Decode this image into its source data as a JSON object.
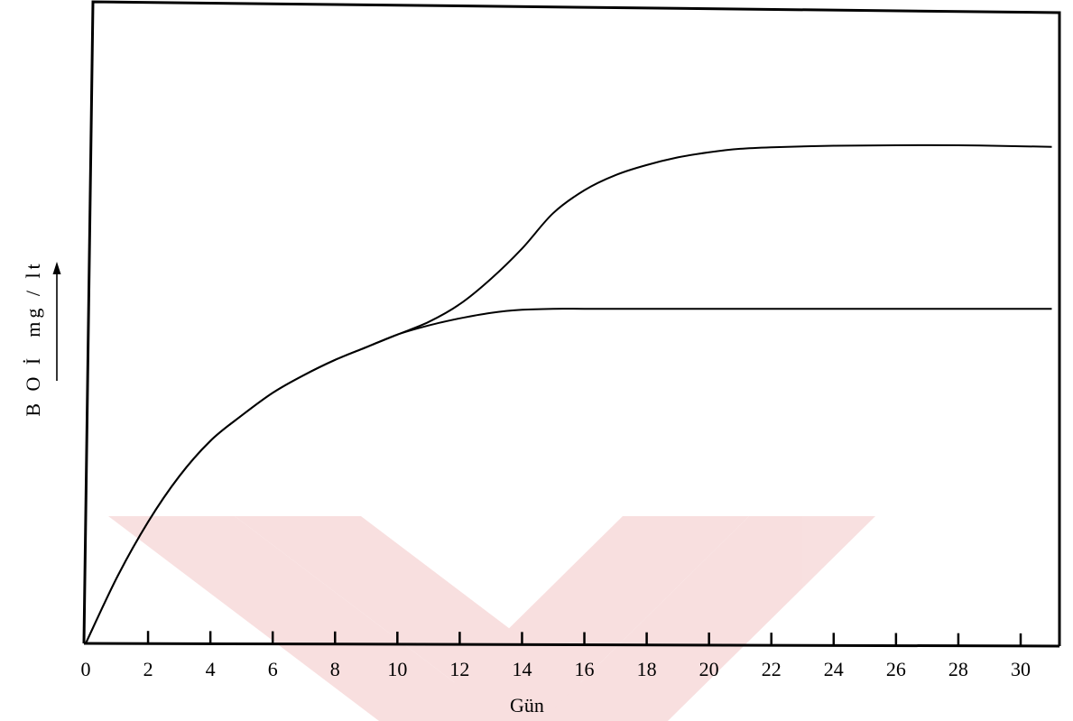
{
  "watermark": {
    "color": "#f3c6c6"
  },
  "chart_data": {
    "type": "line",
    "title": "",
    "xlabel": "Gün",
    "ylabel": "B O İ  mg / lt",
    "xlim": [
      0,
      31
    ],
    "ylim": [
      0,
      100
    ],
    "x_ticks": [
      0,
      2,
      4,
      6,
      8,
      10,
      12,
      14,
      16,
      18,
      20,
      22,
      24,
      26,
      28,
      30
    ],
    "x_tick_labels": [
      "0",
      "2",
      "4",
      "6",
      "8",
      "10",
      "12",
      "14",
      "16",
      "18",
      "20",
      "22",
      "24",
      "26",
      "28",
      "30"
    ],
    "y_tick_labels": [],
    "grid": false,
    "legend": "none",
    "line_color": "#000000",
    "series": [
      {
        "x": [
          0,
          1,
          2,
          3,
          4,
          5,
          6,
          7,
          8,
          9,
          10,
          11,
          12,
          13,
          14,
          15,
          16,
          18,
          20,
          22,
          24,
          26,
          28,
          30,
          31
        ],
        "y": [
          0,
          13,
          24,
          33,
          40,
          45,
          49.5,
          53,
          56,
          58.5,
          61,
          62.8,
          64.2,
          65.3,
          65.9,
          66.1,
          66.1,
          66.1,
          66.1,
          66.1,
          66.1,
          66.1,
          66.1,
          66.1,
          66.1
        ]
      },
      {
        "x": [
          0,
          1,
          2,
          3,
          4,
          5,
          6,
          7,
          8,
          9,
          10,
          11,
          12,
          13,
          14,
          15,
          16,
          17,
          18,
          19,
          20,
          21,
          22,
          24,
          26,
          28,
          30,
          31
        ],
        "y": [
          0,
          13,
          24,
          33,
          40,
          45,
          49.5,
          53,
          56,
          58.5,
          61,
          63.5,
          67,
          72,
          78,
          85,
          89.5,
          92.5,
          94.5,
          96,
          97,
          97.7,
          98,
          98.3,
          98.4,
          98.4,
          98.2,
          98.1
        ]
      }
    ]
  }
}
